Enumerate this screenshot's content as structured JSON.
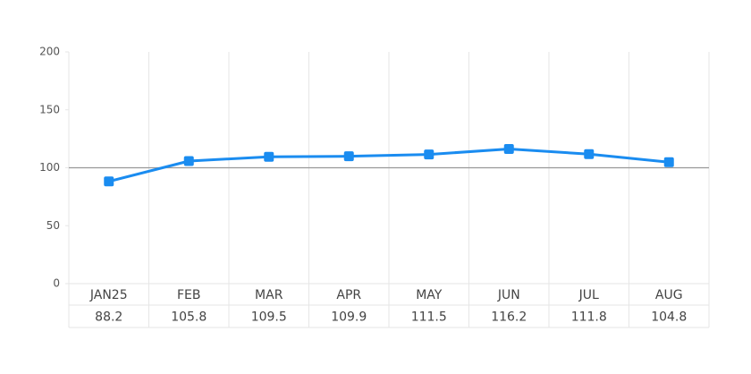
{
  "chart_data": {
    "type": "line",
    "categories": [
      "JAN25",
      "FEB",
      "MAR",
      "APR",
      "MAY",
      "JUN",
      "JUL",
      "AUG"
    ],
    "values": [
      88.2,
      105.8,
      109.5,
      109.9,
      111.5,
      116.2,
      111.8,
      104.8
    ],
    "color": "#1a8cf0",
    "ylim": [
      0,
      200
    ],
    "yticks": [
      0,
      50,
      100,
      150,
      200
    ],
    "reference_line": 100
  }
}
